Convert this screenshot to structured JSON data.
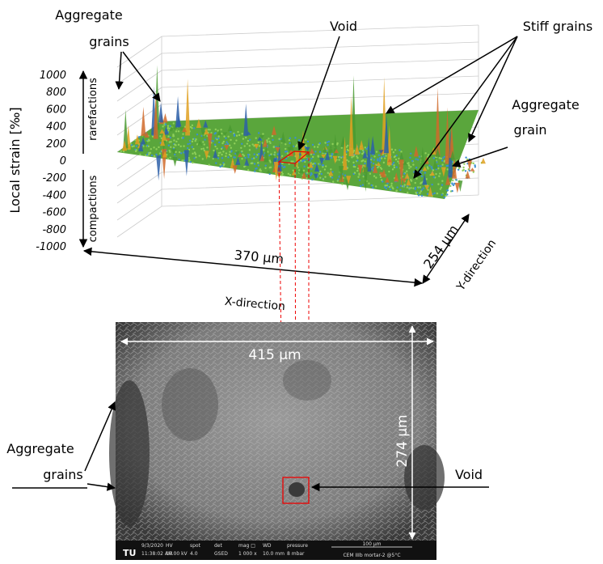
{
  "plot": {
    "axis_label": "Local strain [‰]",
    "ticks": [
      "1000",
      "800",
      "600",
      "400",
      "200",
      "0",
      "-200",
      "-400",
      "-600",
      "-800",
      "-1000"
    ],
    "upper_label": "rarefactions",
    "lower_label": "compactions",
    "x_size": "370 µm",
    "y_size": "254 µm",
    "x_direction": "X-direction",
    "y_direction": "Y-direction"
  },
  "annotations": {
    "aggregate_grains_top": [
      "Aggregate",
      "grains"
    ],
    "void_top": "Void",
    "stiff_grains": "Stiff grains",
    "aggregate_grain_right": [
      "Aggregate",
      "grain"
    ],
    "aggregate_grains_left": [
      "Aggregate",
      "grains"
    ],
    "void_bottom": "Void"
  },
  "sem": {
    "width": "415 µm",
    "height": "274 µm",
    "logo": "TU",
    "info": [
      [
        "9/3/2020",
        "11:38:02 AM"
      ],
      [
        "HV",
        "10.00 kV"
      ],
      [
        "spot",
        "4.0"
      ],
      [
        "det",
        "GSED"
      ],
      [
        "mag □",
        "1 000 x"
      ],
      [
        "WD",
        "10.0 mm"
      ],
      [
        "pressure",
        "8 mbar"
      ]
    ],
    "scale": "100 µm",
    "sample": "CEM IIIb mortar-2 @5°C"
  }
}
